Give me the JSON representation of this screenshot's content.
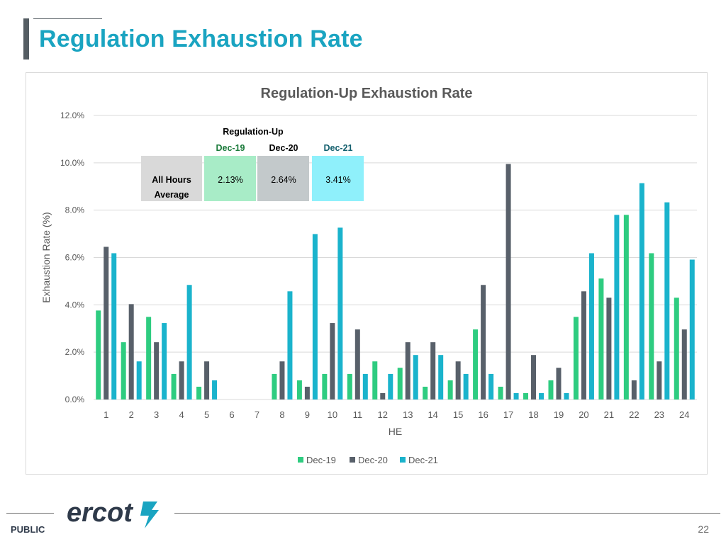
{
  "slide": {
    "title": "Regulation Exhaustion Rate",
    "footer_label": "PUBLIC",
    "page_number": "22",
    "logo_text": "ercot"
  },
  "colors": {
    "title": "#1aa4c1",
    "dec19": "#2ecc80",
    "dec20": "#58606a",
    "dec21": "#1ab3cc",
    "dec19_cell": "#a8ecc7",
    "dec20_cell": "#c3c9cb",
    "dec21_cell": "#8ff0fb",
    "label_cell": "#d9d9d9"
  },
  "chart_data": {
    "type": "bar",
    "title": "Regulation-Up Exhaustion Rate",
    "xlabel": "HE",
    "ylabel": "Exhaustion Rate (%)",
    "ylim": [
      0,
      12
    ],
    "yticks": [
      "0.0%",
      "2.0%",
      "4.0%",
      "6.0%",
      "8.0%",
      "10.0%",
      "12.0%"
    ],
    "grid": true,
    "legend_position": "bottom",
    "categories": [
      "1",
      "2",
      "3",
      "4",
      "5",
      "6",
      "7",
      "8",
      "9",
      "10",
      "11",
      "12",
      "13",
      "14",
      "15",
      "16",
      "17",
      "18",
      "19",
      "20",
      "21",
      "22",
      "23",
      "24"
    ],
    "series": [
      {
        "name": "Dec-19",
        "values": [
          3.76,
          2.42,
          3.49,
          1.08,
          0.54,
          0,
          0,
          1.08,
          0.81,
          1.08,
          1.08,
          1.61,
          1.34,
          0.54,
          0.81,
          2.96,
          0.54,
          0.27,
          0.81,
          3.49,
          5.11,
          7.8,
          6.18,
          4.3
        ]
      },
      {
        "name": "Dec-20",
        "values": [
          6.45,
          4.03,
          2.42,
          1.61,
          1.61,
          0,
          0,
          1.61,
          0.54,
          3.23,
          2.96,
          0.27,
          2.42,
          2.42,
          1.61,
          4.84,
          9.95,
          1.88,
          1.34,
          4.57,
          4.3,
          0.81,
          1.61,
          2.96
        ]
      },
      {
        "name": "Dec-21",
        "values": [
          6.18,
          1.61,
          3.23,
          4.84,
          0.81,
          0,
          0,
          4.57,
          6.99,
          7.26,
          1.08,
          1.08,
          1.88,
          1.88,
          1.08,
          1.08,
          0.27,
          0.27,
          0.27,
          6.18,
          7.8,
          9.14,
          8.33,
          5.91
        ]
      }
    ],
    "summary_table": {
      "header": "Regulation-Up",
      "row_label_line1": "All Hours",
      "row_label_line2": "Average",
      "columns": [
        {
          "name": "Dec-19",
          "value": "2.13%"
        },
        {
          "name": "Dec-20",
          "value": "2.64%"
        },
        {
          "name": "Dec-21",
          "value": "3.41%"
        }
      ]
    }
  }
}
